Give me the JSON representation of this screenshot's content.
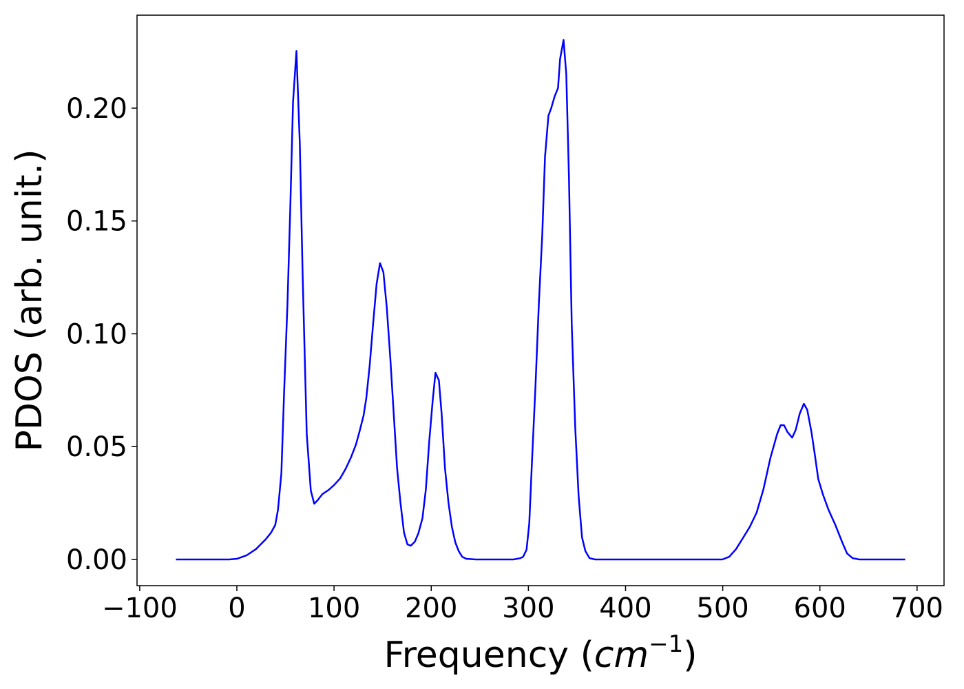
{
  "chart_data": {
    "type": "line",
    "xlabel": [
      "Frequency (",
      "cm",
      "−1",
      ")"
    ],
    "ylabel": "PDOS (arb. unit.)",
    "xlim": [
      -102.75,
      727.75
    ],
    "ylim": [
      -0.0116,
      0.2412
    ],
    "xticks": [
      {
        "value": -100,
        "label": "−100"
      },
      0,
      100,
      200,
      300,
      400,
      500,
      600,
      700
    ],
    "yticks": [
      {
        "value": 0,
        "label": "0.00"
      },
      {
        "value": 0.05,
        "label": "0.05"
      },
      {
        "value": 0.1,
        "label": "0.10"
      },
      {
        "value": 0.15,
        "label": "0.15"
      },
      {
        "value": 0.2,
        "label": "0.20"
      }
    ],
    "x": [
      -62.7,
      -7.8,
      0,
      9.9,
      19.7,
      29.6,
      35.2,
      39.5,
      42.3,
      45.8,
      48.6,
      52.1,
      55.0,
      57.8,
      61.3,
      64.8,
      67.7,
      71.9,
      76.1,
      79.6,
      83.2,
      88.1,
      94.4,
      100.1,
      106.4,
      112.1,
      117.7,
      122.6,
      126.1,
      130.4,
      133.2,
      136.7,
      140.2,
      143.8,
      147.3,
      150.8,
      154.3,
      157.9,
      161.4,
      164.9,
      168.4,
      172.0,
      175.5,
      179.0,
      183.2,
      186.8,
      191.0,
      194.5,
      198.0,
      201.6,
      204.4,
      207.9,
      210.7,
      214.2,
      217.8,
      221.3,
      224.8,
      228.3,
      231.9,
      236.1,
      246.0,
      284.7,
      291.8,
      294.6,
      298.1,
      300.9,
      303.7,
      307.3,
      310.8,
      314.3,
      317.1,
      320.6,
      323.5,
      327.0,
      330.5,
      332.6,
      336.2,
      339.0,
      341.8,
      344.6,
      348.2,
      351.7,
      355.2,
      358.7,
      362.9,
      368.6,
      499.6,
      506.7,
      513.7,
      520.8,
      527.8,
      534.9,
      541.9,
      549.0,
      556.0,
      559.6,
      563.1,
      566.6,
      571.5,
      575.1,
      579.3,
      583.5,
      587.0,
      591.3,
      594.8,
      598.3,
      603.2,
      608.9,
      615.9,
      623.0,
      627.9,
      633.6,
      640.6,
      687.8
    ],
    "series": [
      {
        "color": "#0000ff",
        "values": [
          0,
          0,
          0.0003,
          0.0018,
          0.0046,
          0.0089,
          0.0119,
          0.0153,
          0.022,
          0.0382,
          0.0739,
          0.1136,
          0.1563,
          0.2027,
          0.2253,
          0.1838,
          0.1258,
          0.0556,
          0.0305,
          0.0247,
          0.0263,
          0.029,
          0.0308,
          0.033,
          0.036,
          0.0403,
          0.0455,
          0.051,
          0.0565,
          0.0638,
          0.0715,
          0.0861,
          0.1044,
          0.1221,
          0.1313,
          0.1273,
          0.1115,
          0.0892,
          0.0647,
          0.0403,
          0.025,
          0.0119,
          0.0067,
          0.0061,
          0.0079,
          0.0116,
          0.0183,
          0.0311,
          0.0525,
          0.0708,
          0.0827,
          0.0794,
          0.0647,
          0.0403,
          0.025,
          0.0144,
          0.0076,
          0.0037,
          0.0012,
          0.0003,
          0,
          0,
          0.0006,
          0.0012,
          0.0043,
          0.0159,
          0.0434,
          0.0769,
          0.1136,
          0.1441,
          0.1783,
          0.1966,
          0.2,
          0.2052,
          0.2089,
          0.2217,
          0.2302,
          0.215,
          0.1685,
          0.1044,
          0.0586,
          0.0281,
          0.0098,
          0.0037,
          0.0006,
          0,
          0,
          0.0012,
          0.0046,
          0.0095,
          0.0144,
          0.0208,
          0.0311,
          0.0449,
          0.0556,
          0.0595,
          0.0595,
          0.0565,
          0.054,
          0.0574,
          0.0647,
          0.069,
          0.0663,
          0.0565,
          0.0464,
          0.0357,
          0.0287,
          0.022,
          0.0153,
          0.0076,
          0.0027,
          0.0006,
          0,
          0
        ]
      }
    ]
  }
}
